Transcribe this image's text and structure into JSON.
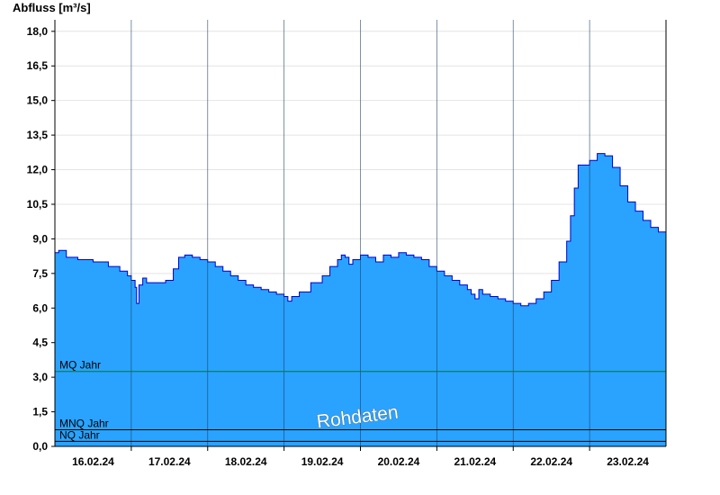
{
  "chart_data": {
    "type": "area",
    "ylabel": "Abfluss [m³/s]",
    "ylim": [
      0,
      18.5
    ],
    "xlim": [
      0,
      8.0
    ],
    "yticks": [
      "0,0",
      "1,5",
      "3,0",
      "4,5",
      "6,0",
      "7,5",
      "9,0",
      "10,5",
      "12,0",
      "13,5",
      "15,0",
      "16,5",
      "18,0"
    ],
    "ytick_values": [
      0,
      1.5,
      3.0,
      4.5,
      6.0,
      7.5,
      9.0,
      10.5,
      12.0,
      13.5,
      15.0,
      16.5,
      18.0
    ],
    "xtick_labels": [
      "16.02.24",
      "17.02.24",
      "18.02.24",
      "19.02.24",
      "20.02.24",
      "21.02.24",
      "22.02.24",
      "23.02.24"
    ],
    "grid": true,
    "fill_color": "#29a3ff",
    "line_color": "#0000cc",
    "reference_lines": [
      {
        "name": "MQ Jahr",
        "value": 3.25,
        "color": "#007a3d"
      },
      {
        "name": "MNQ Jahr",
        "value": 0.72,
        "color": "#000000"
      },
      {
        "name": "NQ Jahr",
        "value": 0.22,
        "color": "#000000"
      }
    ],
    "watermark": "Rohdaten",
    "series": [
      {
        "x": [
          0.0,
          0.05,
          0.15,
          0.3,
          0.5,
          0.7,
          0.85,
          0.95,
          1.0,
          1.05,
          1.07,
          1.1,
          1.15,
          1.2,
          1.3,
          1.45,
          1.55,
          1.62,
          1.7,
          1.8,
          1.9,
          2.0,
          2.1,
          2.2,
          2.3,
          2.4,
          2.5,
          2.6,
          2.7,
          2.8,
          2.9,
          3.0,
          3.05,
          3.1,
          3.2,
          3.35,
          3.5,
          3.6,
          3.7,
          3.75,
          3.8,
          3.85,
          3.9,
          4.0,
          4.1,
          4.2,
          4.3,
          4.4,
          4.5,
          4.6,
          4.7,
          4.8,
          4.9,
          5.0,
          5.1,
          5.2,
          5.3,
          5.4,
          5.45,
          5.5,
          5.55,
          5.6,
          5.7,
          5.8,
          5.9,
          6.0,
          6.1,
          6.2,
          6.3,
          6.4,
          6.5,
          6.6,
          6.7,
          6.75,
          6.8,
          6.85,
          7.0,
          7.1,
          7.2,
          7.3,
          7.4,
          7.5,
          7.6,
          7.7,
          7.8,
          7.9,
          8.0
        ],
        "y": [
          8.4,
          8.5,
          8.2,
          8.1,
          8.0,
          7.8,
          7.6,
          7.4,
          7.2,
          6.9,
          6.2,
          7.0,
          7.3,
          7.1,
          7.1,
          7.2,
          7.7,
          8.2,
          8.3,
          8.2,
          8.1,
          8.0,
          7.8,
          7.6,
          7.4,
          7.2,
          7.0,
          6.9,
          6.8,
          6.7,
          6.6,
          6.5,
          6.3,
          6.5,
          6.7,
          7.1,
          7.4,
          7.8,
          8.1,
          8.3,
          8.2,
          7.9,
          8.1,
          8.3,
          8.2,
          8.0,
          8.3,
          8.2,
          8.4,
          8.3,
          8.2,
          8.1,
          7.8,
          7.6,
          7.4,
          7.2,
          7.0,
          6.8,
          6.6,
          6.4,
          6.8,
          6.6,
          6.5,
          6.4,
          6.3,
          6.2,
          6.1,
          6.2,
          6.4,
          6.7,
          7.2,
          8.0,
          8.9,
          10.0,
          11.2,
          12.2,
          12.4,
          12.7,
          12.6,
          12.1,
          11.3,
          10.6,
          10.2,
          9.8,
          9.5,
          9.3,
          8.9
        ]
      }
    ]
  }
}
